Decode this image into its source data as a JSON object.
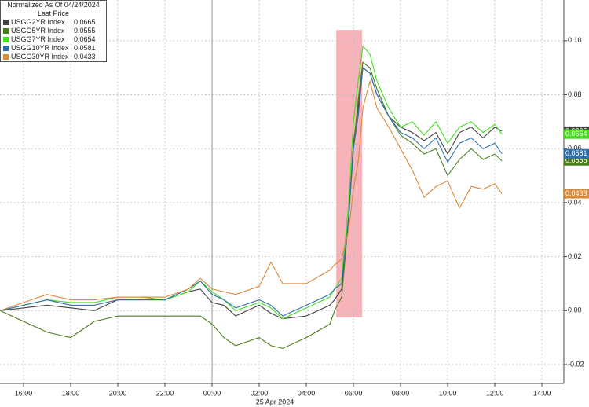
{
  "chart_data": {
    "type": "line",
    "legend_title": "Normalized As Of 04/24/2024",
    "legend_subtitle": "Last Price",
    "x_caption": "25 Apr 2024",
    "x": [
      15,
      17,
      18,
      19,
      20,
      21,
      22,
      23,
      23.5,
      24,
      24.5,
      25,
      26,
      26.5,
      27,
      28,
      29,
      29.2,
      29.5,
      29.8,
      30,
      30.2,
      30.4,
      30.7,
      31,
      31.5,
      32,
      32.5,
      33,
      33.5,
      34,
      34.5,
      35,
      35.5,
      36,
      36.3
    ],
    "series": [
      {
        "name": "USGG2YR Index",
        "color": "#404040",
        "values": [
          0,
          0.002,
          0.001,
          0.0,
          0.004,
          0.004,
          0.004,
          0.007,
          0.008,
          0.003,
          0.002,
          -0.002,
          0.002,
          -0.001,
          -0.003,
          -0.002,
          0.002,
          0.004,
          0.008,
          0.035,
          0.062,
          0.075,
          0.09,
          0.088,
          0.08,
          0.072,
          0.068,
          0.066,
          0.063,
          0.066,
          0.058,
          0.066,
          0.068,
          0.064,
          0.068,
          0.0665
        ]
      },
      {
        "name": "USGG5YR Index",
        "color": "#4a7d1c",
        "values": [
          0,
          -0.008,
          -0.01,
          -0.004,
          -0.002,
          -0.002,
          -0.002,
          -0.002,
          -0.002,
          -0.005,
          -0.01,
          -0.013,
          -0.01,
          -0.013,
          -0.014,
          -0.01,
          -0.005,
          0.0,
          0.005,
          0.035,
          0.06,
          0.078,
          0.092,
          0.09,
          0.082,
          0.072,
          0.065,
          0.062,
          0.058,
          0.06,
          0.05,
          0.056,
          0.06,
          0.056,
          0.058,
          0.0555
        ]
      },
      {
        "name": "USGG7YR Index",
        "color": "#44dd22",
        "values": [
          0,
          0.004,
          0.003,
          0.003,
          0.005,
          0.005,
          0.004,
          0.007,
          0.011,
          0.007,
          0.004,
          0.0,
          0.003,
          0.001,
          -0.003,
          0.001,
          0.005,
          0.008,
          0.012,
          0.04,
          0.07,
          0.085,
          0.098,
          0.095,
          0.085,
          0.075,
          0.068,
          0.07,
          0.065,
          0.07,
          0.062,
          0.068,
          0.07,
          0.066,
          0.069,
          0.0654
        ]
      },
      {
        "name": "USGG10YR Index",
        "color": "#2f6fa8",
        "values": [
          0,
          0.004,
          0.002,
          0.002,
          0.004,
          0.004,
          0.004,
          0.008,
          0.011,
          0.006,
          0.004,
          0.001,
          0.004,
          0.002,
          -0.002,
          0.002,
          0.006,
          0.008,
          0.01,
          0.035,
          0.06,
          0.072,
          0.09,
          0.088,
          0.08,
          0.072,
          0.066,
          0.064,
          0.06,
          0.064,
          0.055,
          0.062,
          0.064,
          0.06,
          0.062,
          0.0581
        ]
      },
      {
        "name": "USGG30YR Index",
        "color": "#d98a3a",
        "values": [
          0,
          0.006,
          0.004,
          0.004,
          0.005,
          0.005,
          0.005,
          0.008,
          0.012,
          0.008,
          0.007,
          0.006,
          0.009,
          0.018,
          0.01,
          0.01,
          0.015,
          0.017,
          0.019,
          0.03,
          0.045,
          0.055,
          0.075,
          0.085,
          0.075,
          0.068,
          0.06,
          0.052,
          0.042,
          0.046,
          0.048,
          0.038,
          0.046,
          0.045,
          0.047,
          0.0433
        ]
      }
    ],
    "xlim": [
      15,
      38.93
    ],
    "xticks": [
      {
        "value": 16,
        "label": "16:00"
      },
      {
        "value": 18,
        "label": "18:00"
      },
      {
        "value": 20,
        "label": "20:00"
      },
      {
        "value": 22,
        "label": "22:00"
      },
      {
        "value": 24,
        "label": "00:00"
      },
      {
        "value": 26,
        "label": "02:00"
      },
      {
        "value": 28,
        "label": "04:00"
      },
      {
        "value": 30,
        "label": "06:00"
      },
      {
        "value": 32,
        "label": "08:00"
      },
      {
        "value": 34,
        "label": "10:00"
      },
      {
        "value": 36,
        "label": "12:00"
      },
      {
        "value": 38,
        "label": "14:00"
      }
    ],
    "ylim": [
      -0.027,
      0.1151
    ],
    "yticks": [
      -0.02,
      {
        "value": 0,
        "label": "0.00"
      },
      0.02,
      0.04,
      0.06,
      0.08,
      {
        "value": 0.1,
        "label": "0.10"
      }
    ],
    "grid": true,
    "separator_x": 24,
    "highlight": {
      "xlim": [
        29.27,
        30.37
      ],
      "ylim": [
        -0.0025,
        0.104
      ],
      "color": "#f4a6ae"
    }
  }
}
